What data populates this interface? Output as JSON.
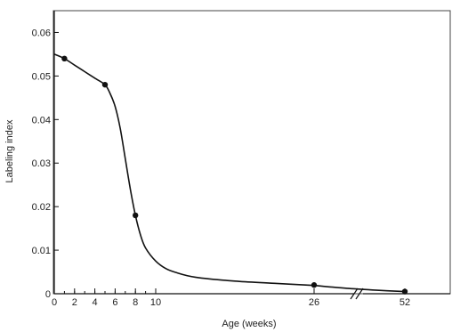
{
  "colors": {
    "curve": "#111111",
    "points": "#111111",
    "background": "#ffffff"
  },
  "chart_data": {
    "type": "line",
    "title": "",
    "xlabel": "Age (weeks)",
    "ylabel": "Labeling index",
    "grid": false,
    "legend": "none",
    "xlim": [
      0,
      56
    ],
    "ylim": [
      0,
      0.065
    ],
    "x_axis_break": {
      "between": [
        26,
        52
      ]
    },
    "x_ticks": [
      0,
      2,
      4,
      6,
      8,
      10,
      26,
      52
    ],
    "x_tick_labels": [
      "0",
      "2",
      "4",
      "6",
      "8",
      "10",
      "26",
      "52"
    ],
    "y_ticks": [
      0,
      0.01,
      0.02,
      0.03,
      0.04,
      0.05,
      0.06
    ],
    "y_tick_labels": [
      "0",
      "0.01",
      "0.02",
      "0.03",
      "0.04",
      "0.05",
      "0.06"
    ],
    "series": [
      {
        "x": [
          1,
          5,
          8,
          26,
          52
        ],
        "y": [
          0.054,
          0.048,
          0.018,
          0.002,
          0.0005
        ],
        "markers": true
      }
    ],
    "fitted_curve": {
      "x": [
        0,
        1,
        2,
        3,
        4,
        5,
        5.5,
        6,
        6.5,
        7,
        7.5,
        8,
        8.5,
        9,
        10,
        11,
        12,
        14,
        18,
        22,
        26,
        30,
        36,
        44,
        52
      ],
      "y": [
        0.055,
        0.054,
        0.0525,
        0.051,
        0.0495,
        0.048,
        0.046,
        0.043,
        0.038,
        0.031,
        0.024,
        0.018,
        0.0135,
        0.0105,
        0.0075,
        0.0058,
        0.0049,
        0.0038,
        0.0029,
        0.0024,
        0.0019,
        0.0016,
        0.0012,
        0.0008,
        0.0005
      ]
    }
  }
}
